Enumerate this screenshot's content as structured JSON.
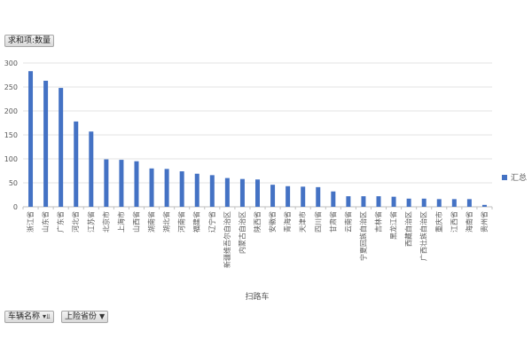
{
  "pivot": {
    "values_field_label": "求和项:数量",
    "row_field_vehicle": "车辆名称",
    "row_field_province": "上险省份",
    "filter_icon": "filter-icon",
    "dropdown_icon": "dropdown-arrow-icon"
  },
  "chart_data": {
    "type": "bar",
    "categories": [
      "浙江省",
      "山东省",
      "广东省",
      "河北省",
      "江苏省",
      "北京市",
      "上海市",
      "山西省",
      "湖南省",
      "湖北省",
      "河南省",
      "福建省",
      "辽宁省",
      "新疆维吾尔自治区",
      "内蒙古自治区",
      "陕西省",
      "安徽省",
      "青海省",
      "天津市",
      "四川省",
      "甘肃省",
      "云南省",
      "宁夏回族自治区",
      "吉林省",
      "黑龙江省",
      "西藏自治区",
      "广西壮族自治区",
      "重庆市",
      "江西省",
      "海南省",
      "贵州省"
    ],
    "series": [
      {
        "name": "汇总",
        "color": "#4472c4",
        "values": [
          283,
          263,
          248,
          178,
          157,
          99,
          98,
          95,
          80,
          79,
          74,
          69,
          66,
          60,
          58,
          57,
          46,
          43,
          42,
          41,
          32,
          22,
          22,
          22,
          21,
          17,
          17,
          16,
          16,
          16,
          4
        ]
      }
    ],
    "xlabel": "扫路车",
    "ylabel": "",
    "ylim": [
      0,
      300
    ],
    "yticks": [
      0,
      50,
      100,
      150,
      200,
      250,
      300
    ],
    "grid": true,
    "legend_position": "right"
  }
}
